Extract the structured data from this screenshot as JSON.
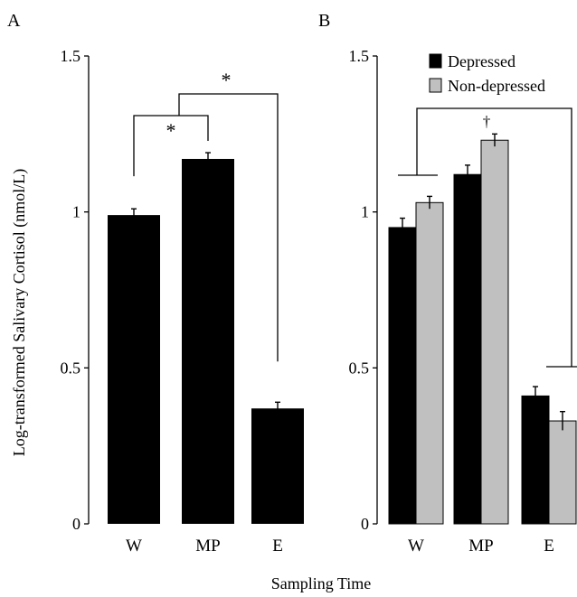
{
  "chart_data": [
    {
      "panel": "A",
      "type": "bar",
      "categories": [
        "W",
        "MP",
        "E"
      ],
      "series": [
        {
          "values": [
            0.99,
            1.17,
            0.37
          ],
          "errors": [
            0.02,
            0.02,
            0.02
          ],
          "color": "#000000"
        }
      ],
      "ylim": [
        0,
        1.5
      ],
      "yticks": [
        "0",
        "0.5",
        "1",
        "1.5"
      ],
      "ylabel": "Log-transformed Salivary Cortisol (nmol/L)",
      "annotations": [
        {
          "symbol": "*",
          "between": [
            "W",
            "MP"
          ]
        },
        {
          "symbol": "*",
          "between": [
            "W–MP",
            "E"
          ]
        }
      ],
      "grid": false
    },
    {
      "panel": "B",
      "type": "bar",
      "categories": [
        "W",
        "MP",
        "E"
      ],
      "series": [
        {
          "name": "Depressed",
          "values": [
            0.95,
            1.12,
            0.41
          ],
          "errors": [
            0.03,
            0.03,
            0.03
          ],
          "color": "#000000"
        },
        {
          "name": "Non-depressed",
          "values": [
            1.03,
            1.23,
            0.33
          ],
          "errors": [
            0.02,
            0.02,
            0.03
          ],
          "color": "#c0c0c0"
        }
      ],
      "ylim": [
        0,
        1.5
      ],
      "yticks": [
        "0",
        "0.5",
        "1",
        "1.5"
      ],
      "annotations": [
        {
          "symbol": "†",
          "between": [
            "W–MP",
            "E"
          ]
        }
      ],
      "legend_placement": "top-right",
      "grid": false
    }
  ],
  "xlabel": "Sampling Time"
}
